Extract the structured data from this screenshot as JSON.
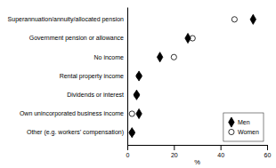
{
  "chart_data": {
    "type": "dot",
    "orientation": "horizontal",
    "categories": [
      "Superannuation/annuity/allocated pension",
      "Government pension or allowance",
      "No income",
      "Rental property income",
      "Dividends or interest",
      "Own unincorporated business income",
      "Other (e.g. workers’ compensation)"
    ],
    "series": [
      {
        "name": "Men",
        "color": "black",
        "marker": "diamond",
        "values": [
          54,
          26,
          14,
          5,
          4,
          5,
          2
        ]
      },
      {
        "name": "Women",
        "color": "white",
        "marker": "circle",
        "values": [
          46,
          28,
          20,
          5,
          4,
          2,
          2
        ]
      }
    ],
    "xlabel": "%",
    "xlim": [
      0,
      60
    ],
    "xticks": [
      0,
      20,
      40,
      60
    ],
    "grid": false,
    "legend": "lower right"
  }
}
